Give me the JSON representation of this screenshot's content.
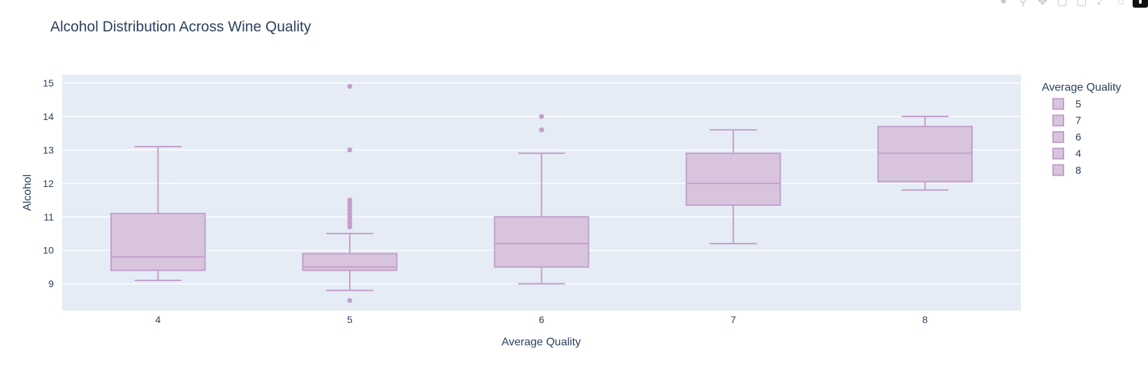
{
  "chart_data": {
    "type": "box",
    "title": "Alcohol Distribution Across Wine Quality",
    "xlabel": "Average Quality",
    "ylabel": "Alcohol",
    "categories": [
      "4",
      "5",
      "6",
      "7",
      "8"
    ],
    "ylim": [
      8.2,
      15.25
    ],
    "yticks": [
      9,
      10,
      11,
      12,
      13,
      14,
      15
    ],
    "grid": true,
    "legend_title": "Average Quality",
    "legend_position": "right",
    "legend_entries": [
      "5",
      "7",
      "6",
      "4",
      "8"
    ],
    "box_fill": "#d8c5dd",
    "box_line": "#c49ecc",
    "plot_bg": "#e5ecf6",
    "series": [
      {
        "name": "4",
        "category": "4",
        "min": 9.1,
        "q1": 9.4,
        "median": 9.8,
        "q3": 11.1,
        "max": 13.1,
        "outliers": []
      },
      {
        "name": "5",
        "category": "5",
        "min": 8.8,
        "q1": 9.4,
        "median": 9.5,
        "q3": 9.9,
        "max": 10.5,
        "outliers": [
          8.5,
          10.7,
          10.8,
          10.9,
          11.0,
          11.1,
          11.2,
          11.3,
          11.4,
          11.5,
          13.0,
          14.9
        ]
      },
      {
        "name": "6",
        "category": "6",
        "min": 9.0,
        "q1": 9.5,
        "median": 10.2,
        "q3": 11.0,
        "max": 12.9,
        "outliers": [
          13.6,
          14.0
        ]
      },
      {
        "name": "7",
        "category": "7",
        "min": 10.2,
        "q1": 11.35,
        "median": 12.0,
        "q3": 12.9,
        "max": 13.6,
        "outliers": []
      },
      {
        "name": "8",
        "category": "8",
        "min": 11.8,
        "q1": 12.05,
        "median": 12.9,
        "q3": 13.7,
        "max": 14.0,
        "outliers": []
      }
    ]
  },
  "modebar": {
    "icons": [
      "camera-icon",
      "zoom-icon",
      "pan-icon",
      "zoom-in-icon",
      "zoom-out-icon",
      "autoscale-icon",
      "reset-icon",
      "plotly-logo-icon"
    ]
  }
}
